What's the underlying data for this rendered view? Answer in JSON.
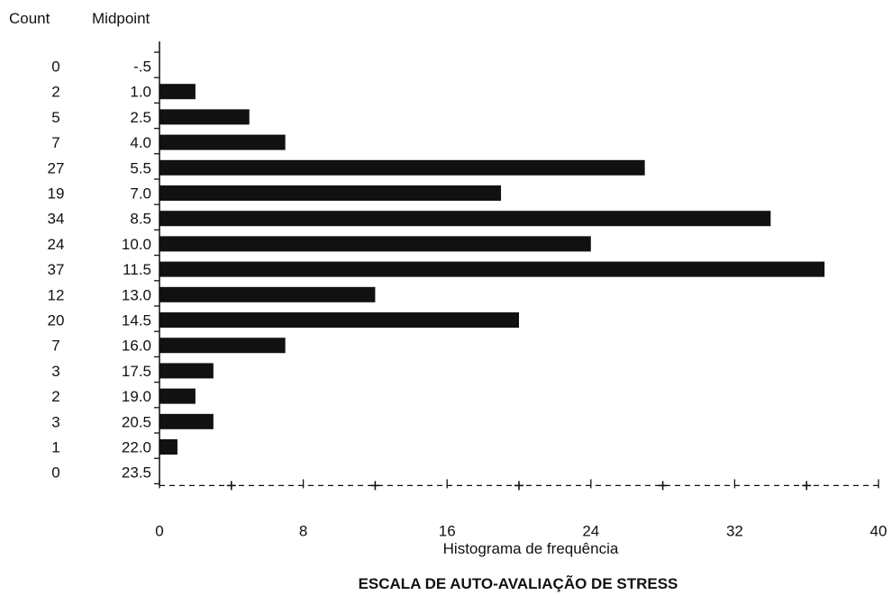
{
  "chart_data": {
    "type": "bar",
    "orientation": "horizontal",
    "column_headers": {
      "count": "Count",
      "midpoint": "Midpoint"
    },
    "midpoints": [
      "-.5",
      "1.0",
      "2.5",
      "4.0",
      "5.5",
      "7.0",
      "8.5",
      "10.0",
      "11.5",
      "13.0",
      "14.5",
      "16.0",
      "17.5",
      "19.0",
      "20.5",
      "22.0",
      "23.5"
    ],
    "counts": [
      0,
      2,
      5,
      7,
      27,
      19,
      34,
      24,
      37,
      12,
      20,
      7,
      3,
      2,
      3,
      1,
      0
    ],
    "values": [
      0,
      2,
      5,
      7,
      27,
      19,
      34,
      24,
      37,
      12,
      20,
      7,
      3,
      2,
      3,
      1,
      0
    ],
    "xlim": [
      0,
      40
    ],
    "xticks": [
      "0",
      "8",
      "16",
      "24",
      "32",
      "40"
    ],
    "xlabel": "Histograma de frequência",
    "title": "ESCALA DE AUTO-AVALIAÇÃO DE STRESS",
    "bar_color": "#111111"
  }
}
